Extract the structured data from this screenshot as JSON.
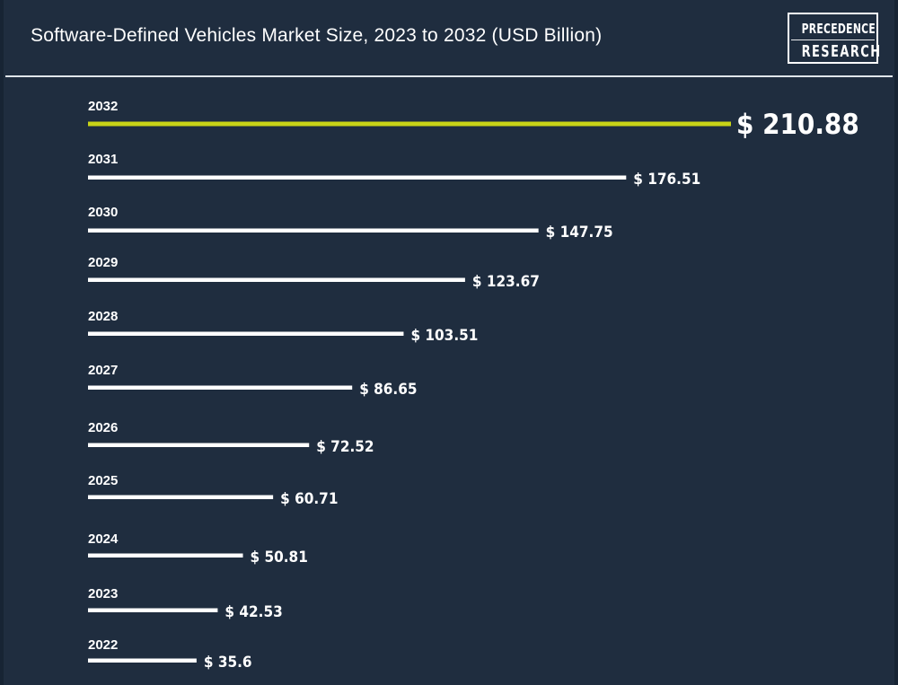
{
  "header": {
    "title": "Software-Defined Vehicles Market Size, 2023 to 2032 (USD Billion)",
    "logo_line_1": "PRECEDENCE",
    "logo_line_2": "RESEARCH"
  },
  "chart_data": {
    "type": "bar",
    "title": "Software-Defined Vehicles Market Size, 2023 to 2032 (USD Billion)",
    "categories": [
      "2032",
      "2031",
      "2030",
      "2029",
      "2028",
      "2027",
      "2026",
      "2025",
      "2024",
      "2023",
      "2022"
    ],
    "values": [
      210.88,
      176.51,
      147.75,
      123.67,
      103.51,
      86.65,
      72.52,
      60.71,
      50.81,
      42.53,
      35.6
    ],
    "value_labels": [
      "$ 210.88",
      "$ 176.51",
      "$ 147.75",
      "$ 123.67",
      "$ 103.51",
      "$ 86.65",
      "$ 72.52",
      "$ 60.71",
      "$ 50.81",
      "$ 42.53",
      "$ 35.6"
    ],
    "xlabel": "",
    "ylabel": "",
    "xlim": [
      0,
      210.88
    ],
    "orientation": "horizontal",
    "grid": false,
    "legend": "none",
    "colors": {
      "background": "#1f2d3f",
      "bar_default": "#ffffff",
      "bar_highlight": "#c8d417",
      "text": "#ffffff"
    }
  }
}
